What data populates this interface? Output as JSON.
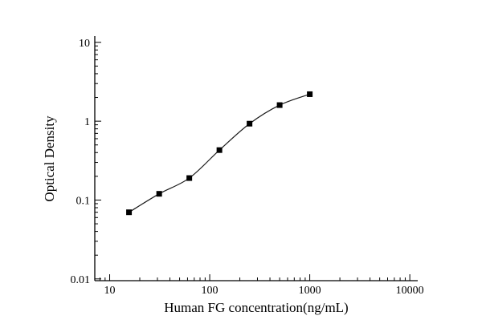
{
  "chart_data": {
    "type": "scatter-line",
    "title": "",
    "xlabel": "Human FG concentration(ng/mL)",
    "ylabel": "Optical Density",
    "x_scale": "log",
    "y_scale": "log",
    "xlim": [
      7.1,
      12000
    ],
    "ylim": [
      0.0095,
      12
    ],
    "x": [
      15.6,
      31.25,
      62.5,
      125,
      250,
      500,
      1000
    ],
    "y": [
      0.07,
      0.12,
      0.19,
      0.43,
      0.93,
      1.6,
      2.2
    ],
    "x_ticks": [
      10,
      100,
      1000,
      10000
    ],
    "x_tick_labels": [
      "10",
      "100",
      "1000",
      "10000"
    ],
    "y_ticks": [
      0.01,
      0.1,
      1,
      10
    ],
    "y_tick_labels": [
      "0.01",
      "0.1",
      "1",
      "10"
    ],
    "grid": false,
    "legend": "none",
    "marker": "square",
    "marker_size": 7,
    "marker_color": "#000000",
    "line_color": "#1a1a1a",
    "axis_color": "#000000",
    "background": "#ffffff"
  }
}
